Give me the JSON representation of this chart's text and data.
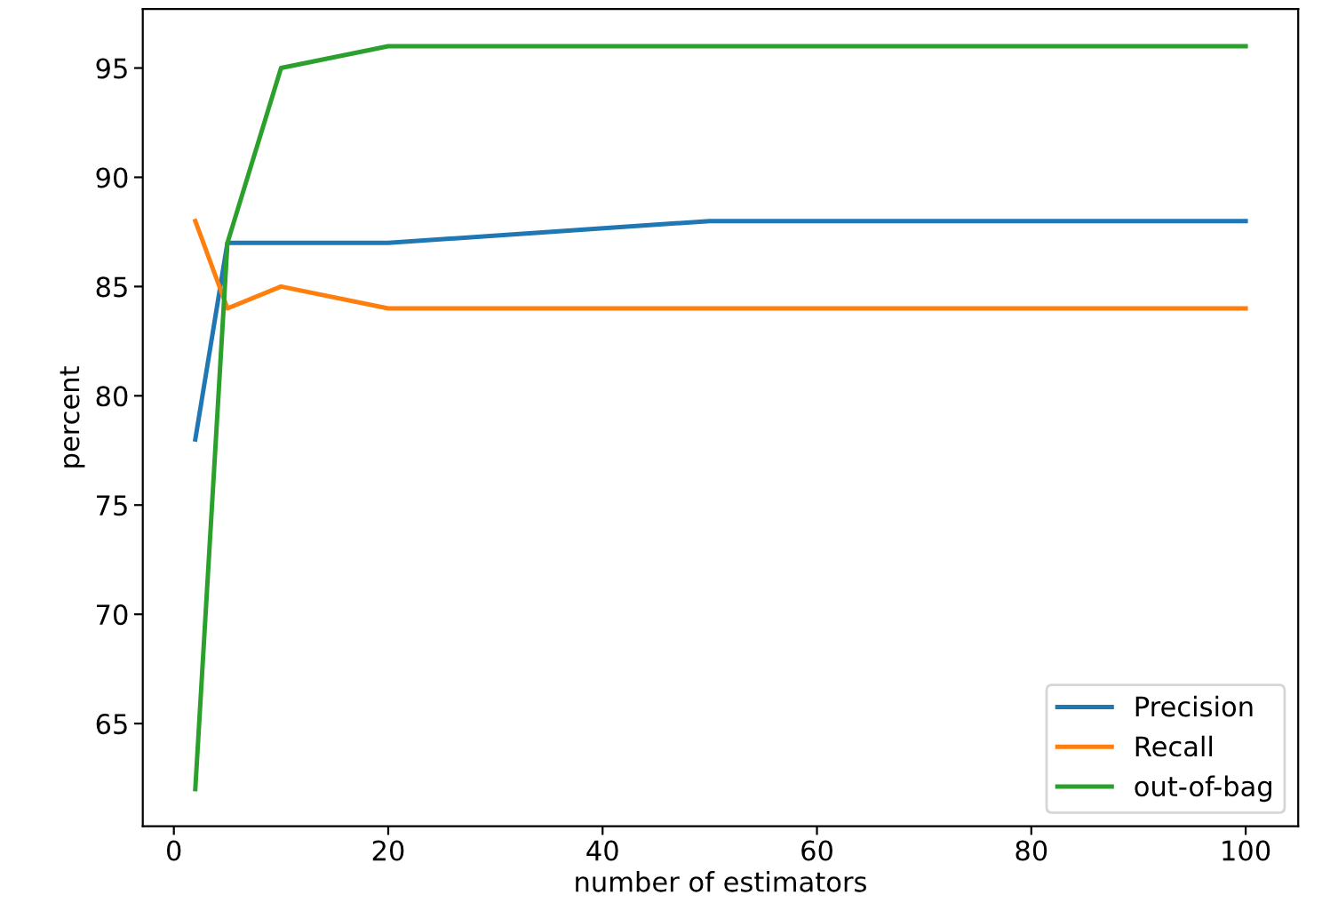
{
  "chart_data": {
    "type": "line",
    "xlabel": "number of estimators",
    "ylabel": "percent",
    "x": [
      2,
      5,
      10,
      20,
      50,
      100
    ],
    "series": [
      {
        "name": "Precision",
        "color": "#1f77b4",
        "values": [
          78,
          87,
          87,
          87,
          88,
          88
        ]
      },
      {
        "name": "Recall",
        "color": "#ff7f0e",
        "values": [
          88,
          84,
          85,
          84,
          84,
          84
        ]
      },
      {
        "name": "out-of-bag",
        "color": "#2ca02c",
        "values": [
          62,
          87,
          95,
          96,
          96,
          96
        ]
      }
    ],
    "xlim": [
      -2.9,
      104.9
    ],
    "ylim": [
      60.3,
      97.7
    ],
    "xticks": [
      0,
      20,
      40,
      60,
      80,
      100
    ],
    "yticks": [
      65,
      70,
      75,
      80,
      85,
      90,
      95
    ],
    "grid": false,
    "legend": "lower right",
    "marker": "none",
    "line_style": "solid"
  }
}
